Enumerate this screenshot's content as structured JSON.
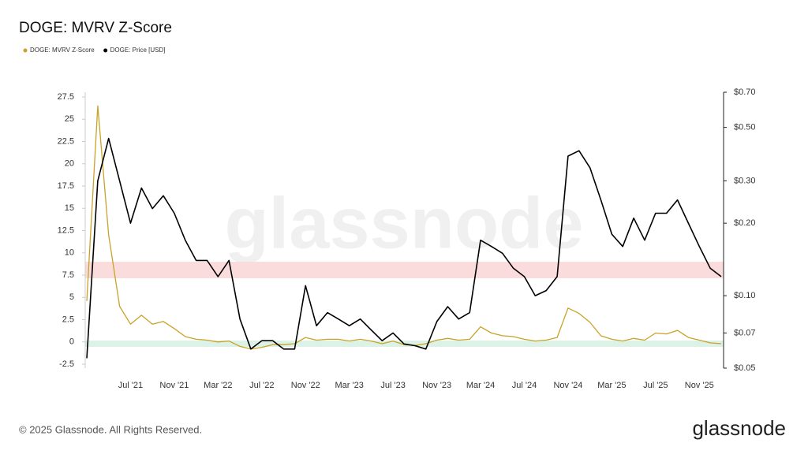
{
  "chart_data": {
    "type": "line",
    "title": "DOGE: MVRV Z-Score",
    "categories": [
      null,
      null,
      null,
      null,
      "Jul '21",
      null,
      null,
      null,
      "Nov '21",
      null,
      null,
      null,
      "Mar '22",
      null,
      null,
      null,
      "Jul '22",
      null,
      null,
      null,
      "Nov '22",
      null,
      null,
      null,
      "Mar '23",
      null,
      null,
      null,
      "Jul '23",
      null,
      null,
      null,
      "Nov '23",
      null,
      null,
      null,
      "Mar '24",
      null,
      null,
      null,
      "Jul '24",
      null,
      null,
      null,
      "Nov '24",
      null,
      null,
      null,
      "Mar '25",
      null,
      null,
      null,
      "Jul '25",
      null,
      null,
      null,
      "Nov '25",
      null,
      null
    ],
    "series": [
      {
        "name": "DOGE: MVRV Z-Score",
        "color": "#c9a227",
        "axis": "y",
        "values": [
          4.6,
          26.5,
          12,
          4,
          2,
          3,
          2,
          2.3,
          1.5,
          0.6,
          0.3,
          0.2,
          0,
          0.1,
          -0.5,
          -0.8,
          -0.6,
          -0.3,
          -0.3,
          -0.2,
          0.5,
          0.2,
          0.3,
          0.3,
          0.1,
          0.3,
          0.1,
          -0.2,
          0.1,
          -0.3,
          -0.4,
          -0.2,
          0.2,
          0.4,
          0.2,
          0.3,
          1.7,
          1.0,
          0.7,
          0.6,
          0.3,
          0.1,
          0.2,
          0.5,
          3.8,
          3.2,
          2.2,
          0.7,
          0.3,
          0.1,
          0.4,
          0.2,
          1.0,
          0.9,
          1.3,
          0.5,
          0.2,
          -0.1,
          -0.2
        ]
      },
      {
        "name": "DOGE: Price [USD]",
        "color": "#000000",
        "axis": "y2",
        "values": [
          0.055,
          0.3,
          0.45,
          0.3,
          0.2,
          0.28,
          0.23,
          0.26,
          0.22,
          0.17,
          0.14,
          0.14,
          0.12,
          0.14,
          0.08,
          0.06,
          0.065,
          0.065,
          0.06,
          0.06,
          0.11,
          0.075,
          0.085,
          0.08,
          0.075,
          0.08,
          0.072,
          0.065,
          0.07,
          0.063,
          0.062,
          0.06,
          0.078,
          0.09,
          0.08,
          0.085,
          0.17,
          0.16,
          0.15,
          0.13,
          0.12,
          0.1,
          0.105,
          0.12,
          0.38,
          0.4,
          0.34,
          0.25,
          0.18,
          0.16,
          0.21,
          0.17,
          0.22,
          0.22,
          0.25,
          0.2,
          0.16,
          0.13,
          0.12
        ]
      }
    ],
    "ylim": [
      -2.94,
      28.03
    ],
    "yticks": [
      -2.5,
      0,
      2.5,
      5,
      7.5,
      10,
      12.5,
      15,
      17.5,
      20,
      22.5,
      25,
      27.5
    ],
    "y2lim": [
      0.05,
      0.7
    ],
    "y2log": true,
    "y2ticks": [
      {
        "value": 0.05,
        "label": "$0.05"
      },
      {
        "value": 0.07,
        "label": "$0.07"
      },
      {
        "value": 0.1,
        "label": "$0.10"
      },
      {
        "value": 0.2,
        "label": "$0.20"
      },
      {
        "value": 0.3,
        "label": "$0.30"
      },
      {
        "value": 0.5,
        "label": "$0.50"
      },
      {
        "value": 0.7,
        "label": "$0.70"
      }
    ],
    "bands": [
      {
        "from": 7.15,
        "to": 9.0,
        "color": "#fbdcdc"
      },
      {
        "from": -0.55,
        "to": 0.15,
        "color": "#dcf2e6"
      }
    ],
    "grid": false,
    "legend": "top-left"
  },
  "watermark": "glassnode",
  "footer": "© 2025 Glassnode. All Rights Reserved.",
  "logo": "glassnode"
}
